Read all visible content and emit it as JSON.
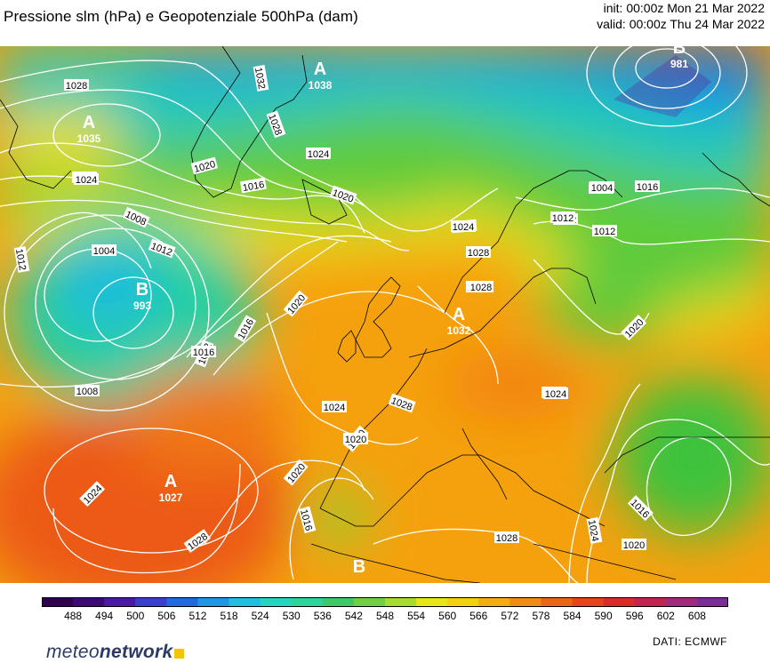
{
  "header": {
    "title": "Pressione slm (hPa) e Geopotenziale 500hPa (dam)",
    "init": "init: 00:00z Mon 21 Mar 2022",
    "valid": "valid: 00:00z Thu 24 Mar 2022"
  },
  "map": {
    "pressure_centers": [
      {
        "type": "A",
        "value": "1035"
      },
      {
        "type": "A",
        "value": "1038"
      },
      {
        "type": "B",
        "value": "981"
      },
      {
        "type": "B",
        "value": "993"
      },
      {
        "type": "A",
        "value": "1027"
      },
      {
        "type": "A",
        "value": "1032"
      },
      {
        "type": "B",
        "value": ""
      }
    ],
    "isobar_labels": [
      "1028",
      "1032",
      "1028",
      "1024",
      "1020",
      "1016",
      "1020",
      "1024",
      "1028",
      "1024",
      "1012",
      "1004",
      "1008",
      "1012",
      "1008",
      "1012",
      "1016",
      "1020",
      "1024",
      "1020",
      "1024",
      "1028",
      "1028",
      "1020",
      "1016",
      "1012",
      "1024",
      "1028",
      "1024",
      "1024",
      "1020",
      "1012",
      "1008",
      "1016",
      "1012",
      "1004",
      "1028",
      "1024",
      "1020",
      "1016",
      "1028",
      "1024",
      "1020",
      "1016"
    ]
  },
  "colorbar": {
    "values": [
      "488",
      "494",
      "500",
      "506",
      "512",
      "518",
      "524",
      "530",
      "536",
      "542",
      "548",
      "554",
      "560",
      "566",
      "572",
      "578",
      "584",
      "590",
      "596",
      "602",
      "608"
    ],
    "colors": [
      "#2e004f",
      "#3b0a78",
      "#4a1aa6",
      "#3a3fd0",
      "#1f6ae0",
      "#1d97e8",
      "#1ebfe0",
      "#22d6c0",
      "#2bd49a",
      "#3cc96a",
      "#6fd040",
      "#a7dc2c",
      "#e6e61a",
      "#f5cf12",
      "#f5ac10",
      "#f08a10",
      "#ec6512",
      "#e84418",
      "#dc2a2a",
      "#c42352",
      "#a2297e",
      "#7d2a9a"
    ]
  },
  "footer": {
    "brand_light": "meteo",
    "brand_bold": "network",
    "credit": "DATI:  ECMWF"
  }
}
